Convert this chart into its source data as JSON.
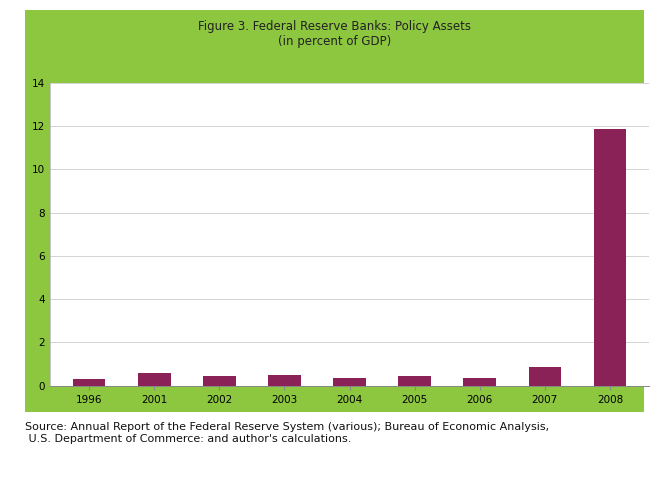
{
  "title_line1": "Figure 3. Federal Reserve Banks: Policy Assets",
  "title_line2": "(in percent of GDP)",
  "categories": [
    "1996",
    "2001",
    "2002",
    "2003",
    "2004",
    "2005",
    "2006",
    "2007",
    "2008"
  ],
  "values": [
    0.3,
    0.58,
    0.46,
    0.48,
    0.35,
    0.46,
    0.37,
    0.88,
    11.85
  ],
  "bar_color": "#8B2257",
  "background_outer": "#8DC63F",
  "background_inner": "#FFFFFF",
  "ylim": [
    0,
    14
  ],
  "yticks": [
    0,
    2,
    4,
    6,
    8,
    10,
    12,
    14
  ],
  "grid_color": "#CCCCCC",
  "title_fontsize": 8.5,
  "tick_fontsize": 7.5,
  "source_text": "Source: Annual Report of the Federal Reserve System (various); Bureau of Economic Analysis,\n U.S. Department of Commerce: and author's calculations."
}
